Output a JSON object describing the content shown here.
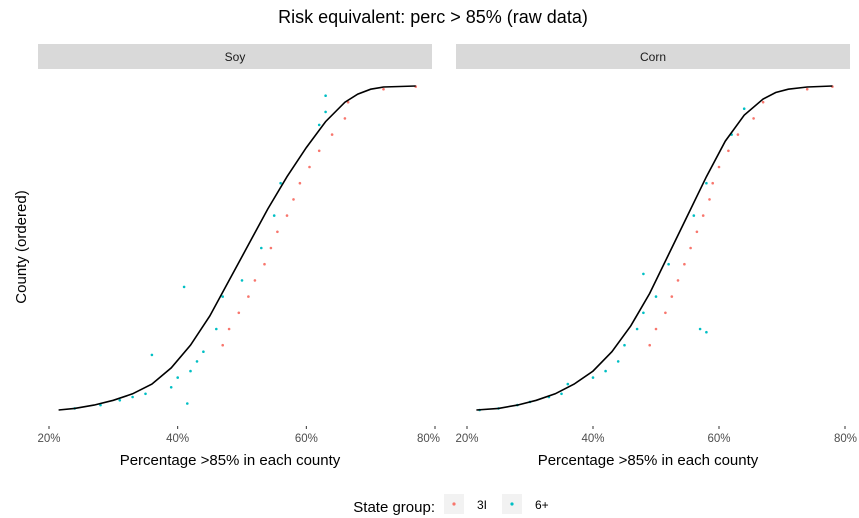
{
  "chart_data": {
    "type": "scatter",
    "title": "Risk equivalent: perc > 85% (raw data)",
    "xlabel": "Percentage >85% in each county",
    "ylabel": "County (ordered)",
    "xlim": [
      0.2,
      0.8
    ],
    "x_ticks": [
      "20%",
      "40%",
      "60%",
      "80%"
    ],
    "x_tick_values": [
      0.2,
      0.4,
      0.6,
      0.8
    ],
    "grid": false,
    "legend": {
      "title": "State group:",
      "position": "bottom",
      "entries": [
        {
          "label": "3I",
          "color": "#F8766D"
        },
        {
          "label": "6+",
          "color": "#00BFC4"
        }
      ]
    },
    "line_color": "#000000",
    "panels": [
      {
        "name": "Soy",
        "curve": {
          "x": [
            0.215,
            0.24,
            0.27,
            0.3,
            0.33,
            0.36,
            0.39,
            0.42,
            0.45,
            0.48,
            0.51,
            0.54,
            0.57,
            0.6,
            0.63,
            0.66,
            0.68,
            0.7,
            0.72,
            0.77
          ],
          "quantile": [
            0.0,
            0.005,
            0.015,
            0.03,
            0.05,
            0.08,
            0.13,
            0.2,
            0.29,
            0.4,
            0.51,
            0.62,
            0.72,
            0.81,
            0.89,
            0.95,
            0.975,
            0.99,
            0.997,
            1.0
          ]
        },
        "points": [
          {
            "group": "3I",
            "q": 0.95,
            "x": 0.665
          },
          {
            "group": "3I",
            "q": 0.9,
            "x": 0.66
          },
          {
            "group": "3I",
            "q": 0.85,
            "x": 0.64
          },
          {
            "group": "3I",
            "q": 0.8,
            "x": 0.62
          },
          {
            "group": "3I",
            "q": 0.75,
            "x": 0.605
          },
          {
            "group": "3I",
            "q": 0.7,
            "x": 0.59
          },
          {
            "group": "3I",
            "q": 0.65,
            "x": 0.58
          },
          {
            "group": "3I",
            "q": 0.6,
            "x": 0.57
          },
          {
            "group": "3I",
            "q": 0.55,
            "x": 0.555
          },
          {
            "group": "3I",
            "q": 0.5,
            "x": 0.545
          },
          {
            "group": "3I",
            "q": 0.45,
            "x": 0.535
          },
          {
            "group": "3I",
            "q": 0.4,
            "x": 0.52
          },
          {
            "group": "3I",
            "q": 0.35,
            "x": 0.51
          },
          {
            "group": "3I",
            "q": 0.3,
            "x": 0.495
          },
          {
            "group": "3I",
            "q": 0.25,
            "x": 0.48
          },
          {
            "group": "3I",
            "q": 0.2,
            "x": 0.47
          },
          {
            "group": "3I",
            "q": 0.99,
            "x": 0.72
          },
          {
            "group": "3I",
            "q": 0.998,
            "x": 0.77
          },
          {
            "group": "6+",
            "q": 0.92,
            "x": 0.63
          },
          {
            "group": "6+",
            "q": 0.88,
            "x": 0.62
          },
          {
            "group": "6+",
            "q": 0.7,
            "x": 0.56
          },
          {
            "group": "6+",
            "q": 0.6,
            "x": 0.55
          },
          {
            "group": "6+",
            "q": 0.5,
            "x": 0.53
          },
          {
            "group": "6+",
            "q": 0.4,
            "x": 0.5
          },
          {
            "group": "6+",
            "q": 0.35,
            "x": 0.47
          },
          {
            "group": "6+",
            "q": 0.38,
            "x": 0.41
          },
          {
            "group": "6+",
            "q": 0.25,
            "x": 0.46
          },
          {
            "group": "6+",
            "q": 0.18,
            "x": 0.44
          },
          {
            "group": "6+",
            "q": 0.15,
            "x": 0.43
          },
          {
            "group": "6+",
            "q": 0.12,
            "x": 0.42
          },
          {
            "group": "6+",
            "q": 0.17,
            "x": 0.36
          },
          {
            "group": "6+",
            "q": 0.1,
            "x": 0.4
          },
          {
            "group": "6+",
            "q": 0.07,
            "x": 0.39
          },
          {
            "group": "6+",
            "q": 0.05,
            "x": 0.35
          },
          {
            "group": "6+",
            "q": 0.04,
            "x": 0.33
          },
          {
            "group": "6+",
            "q": 0.03,
            "x": 0.31
          },
          {
            "group": "6+",
            "q": 0.015,
            "x": 0.28
          },
          {
            "group": "6+",
            "q": 0.005,
            "x": 0.24
          },
          {
            "group": "6+",
            "q": 0.02,
            "x": 0.415
          },
          {
            "group": "6+",
            "q": 0.97,
            "x": 0.63
          }
        ]
      },
      {
        "name": "Corn",
        "curve": {
          "x": [
            0.215,
            0.25,
            0.28,
            0.31,
            0.34,
            0.37,
            0.4,
            0.43,
            0.46,
            0.49,
            0.52,
            0.55,
            0.58,
            0.61,
            0.64,
            0.67,
            0.69,
            0.71,
            0.74,
            0.78
          ],
          "quantile": [
            0.0,
            0.005,
            0.015,
            0.03,
            0.05,
            0.08,
            0.12,
            0.18,
            0.26,
            0.36,
            0.48,
            0.6,
            0.72,
            0.83,
            0.91,
            0.96,
            0.98,
            0.99,
            0.997,
            1.0
          ]
        },
        "points": [
          {
            "group": "3I",
            "q": 0.95,
            "x": 0.67
          },
          {
            "group": "3I",
            "q": 0.9,
            "x": 0.655
          },
          {
            "group": "3I",
            "q": 0.85,
            "x": 0.63
          },
          {
            "group": "3I",
            "q": 0.8,
            "x": 0.615
          },
          {
            "group": "3I",
            "q": 0.75,
            "x": 0.6
          },
          {
            "group": "3I",
            "q": 0.7,
            "x": 0.59
          },
          {
            "group": "3I",
            "q": 0.65,
            "x": 0.585
          },
          {
            "group": "3I",
            "q": 0.6,
            "x": 0.575
          },
          {
            "group": "3I",
            "q": 0.55,
            "x": 0.565
          },
          {
            "group": "3I",
            "q": 0.5,
            "x": 0.555
          },
          {
            "group": "3I",
            "q": 0.45,
            "x": 0.545
          },
          {
            "group": "3I",
            "q": 0.4,
            "x": 0.535
          },
          {
            "group": "3I",
            "q": 0.35,
            "x": 0.525
          },
          {
            "group": "3I",
            "q": 0.3,
            "x": 0.515
          },
          {
            "group": "3I",
            "q": 0.25,
            "x": 0.5
          },
          {
            "group": "3I",
            "q": 0.2,
            "x": 0.49
          },
          {
            "group": "3I",
            "q": 0.99,
            "x": 0.74
          },
          {
            "group": "3I",
            "q": 0.998,
            "x": 0.78
          },
          {
            "group": "6+",
            "q": 0.93,
            "x": 0.64
          },
          {
            "group": "6+",
            "q": 0.85,
            "x": 0.62
          },
          {
            "group": "6+",
            "q": 0.7,
            "x": 0.58
          },
          {
            "group": "6+",
            "q": 0.6,
            "x": 0.56
          },
          {
            "group": "6+",
            "q": 0.45,
            "x": 0.52
          },
          {
            "group": "6+",
            "q": 0.42,
            "x": 0.48
          },
          {
            "group": "6+",
            "q": 0.35,
            "x": 0.5
          },
          {
            "group": "6+",
            "q": 0.3,
            "x": 0.48
          },
          {
            "group": "6+",
            "q": 0.25,
            "x": 0.47
          },
          {
            "group": "6+",
            "q": 0.2,
            "x": 0.45
          },
          {
            "group": "6+",
            "q": 0.25,
            "x": 0.57
          },
          {
            "group": "6+",
            "q": 0.15,
            "x": 0.44
          },
          {
            "group": "6+",
            "q": 0.12,
            "x": 0.42
          },
          {
            "group": "6+",
            "q": 0.1,
            "x": 0.4
          },
          {
            "group": "6+",
            "q": 0.08,
            "x": 0.36
          },
          {
            "group": "6+",
            "q": 0.05,
            "x": 0.35
          },
          {
            "group": "6+",
            "q": 0.04,
            "x": 0.33
          },
          {
            "group": "6+",
            "q": 0.025,
            "x": 0.3
          },
          {
            "group": "6+",
            "q": 0.015,
            "x": 0.28
          },
          {
            "group": "6+",
            "q": 0.005,
            "x": 0.25
          },
          {
            "group": "6+",
            "q": 0.24,
            "x": 0.58
          },
          {
            "group": "6+",
            "q": 0.0,
            "x": 0.22
          }
        ]
      }
    ]
  }
}
